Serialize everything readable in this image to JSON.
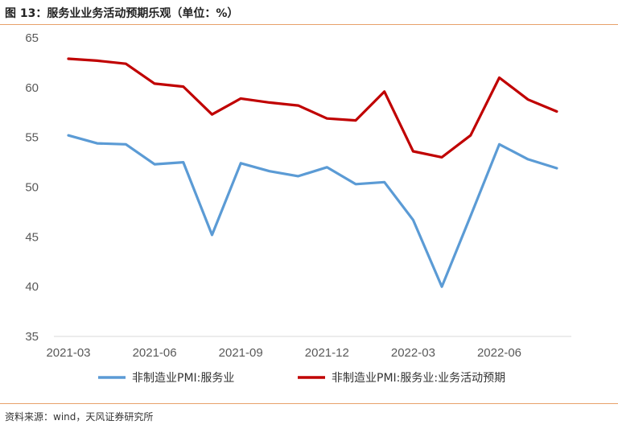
{
  "title": "图 13：服务业业务活动预期乐观（单位：%）",
  "source": "资料来源：wind，天风证券研究所",
  "colors": {
    "rule": "#e8a16a",
    "series1": "#5b9bd5",
    "series2": "#c00000"
  },
  "chart_data": {
    "type": "line",
    "x": [
      "2021-03",
      "2021-04",
      "2021-05",
      "2021-06",
      "2021-07",
      "2021-08",
      "2021-09",
      "2021-10",
      "2021-11",
      "2021-12",
      "2022-01",
      "2022-02",
      "2022-03",
      "2022-04",
      "2022-05",
      "2022-06",
      "2022-07",
      "2022-08"
    ],
    "x_tick_labels": [
      "2021-03",
      "2021-06",
      "2021-09",
      "2021-12",
      "2022-03",
      "2022-06"
    ],
    "y_ticks": [
      35,
      40,
      45,
      50,
      55,
      60,
      65
    ],
    "ylim": [
      35,
      65
    ],
    "grid": false,
    "legend_position": "bottom",
    "series": [
      {
        "name": "非制造业PMI:服务业",
        "color": "#5b9bd5",
        "values": [
          55.2,
          54.4,
          54.3,
          52.3,
          52.5,
          45.2,
          52.4,
          51.6,
          51.1,
          52.0,
          50.3,
          50.5,
          46.7,
          40.0,
          47.1,
          54.3,
          52.8,
          51.9
        ]
      },
      {
        "name": "非制造业PMI:服务业:业务活动预期",
        "color": "#c00000",
        "values": [
          62.9,
          62.7,
          62.4,
          60.4,
          60.1,
          57.3,
          58.9,
          58.5,
          58.2,
          56.9,
          56.7,
          59.6,
          53.6,
          53.0,
          55.2,
          61.0,
          58.8,
          57.6
        ]
      }
    ]
  }
}
